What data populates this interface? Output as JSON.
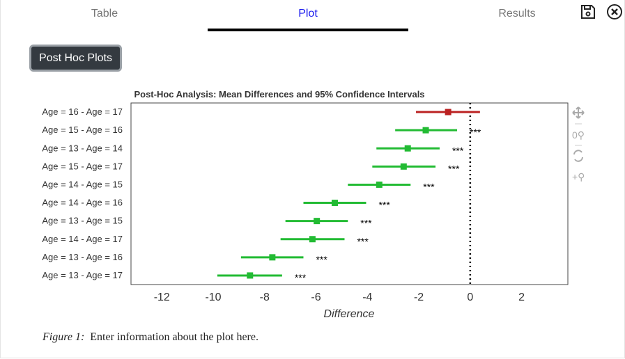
{
  "tabs": [
    {
      "label": "Table"
    },
    {
      "label": "Plot",
      "active": true
    },
    {
      "label": "Results"
    }
  ],
  "icons": {
    "save": "save-icon",
    "close": "close-circle-icon"
  },
  "button": {
    "label": "Post Hoc Plots"
  },
  "toolbar": [
    "move-icon",
    "zoom-reset-icon",
    "reset-icon",
    "zoom-in-icon"
  ],
  "caption": {
    "label": "Figure 1:",
    "text": "Enter information about the plot here."
  },
  "chart_data": {
    "type": "forest",
    "title": "Post-Hoc Analysis: Mean Differences and 95% Confidence Intervals",
    "xlabel": "Difference",
    "xlim": [
      -13.2,
      3.8
    ],
    "xticks": [
      -12,
      -10,
      -8,
      -6,
      -4,
      -2,
      0,
      2
    ],
    "reference_line": 0,
    "colors": {
      "significant": "#22bb33",
      "nonsignificant": "#bb2222"
    },
    "rows": [
      {
        "label": "Age = 16 - Age = 17",
        "mean": -0.86,
        "lo": -2.11,
        "hi": 0.38,
        "sig": ""
      },
      {
        "label": "Age = 15 - Age = 16",
        "mean": -1.73,
        "lo": -2.92,
        "hi": -0.51,
        "sig": "***"
      },
      {
        "label": "Age = 13 - Age = 14",
        "mean": -2.43,
        "lo": -3.65,
        "hi": -1.19,
        "sig": "***"
      },
      {
        "label": "Age = 15 - Age = 17",
        "mean": -2.59,
        "lo": -3.81,
        "hi": -1.35,
        "sig": "***"
      },
      {
        "label": "Age = 14 - Age = 15",
        "mean": -3.54,
        "lo": -4.76,
        "hi": -2.32,
        "sig": "***"
      },
      {
        "label": "Age = 14 - Age = 16",
        "mean": -5.27,
        "lo": -6.49,
        "hi": -4.05,
        "sig": "***"
      },
      {
        "label": "Age = 13 - Age = 15",
        "mean": -5.97,
        "lo": -7.19,
        "hi": -4.76,
        "sig": "***"
      },
      {
        "label": "Age = 14 - Age = 17",
        "mean": -6.14,
        "lo": -7.38,
        "hi": -4.89,
        "sig": "***"
      },
      {
        "label": "Age = 13 - Age = 16",
        "mean": -7.7,
        "lo": -8.92,
        "hi": -6.49,
        "sig": "***"
      },
      {
        "label": "Age = 13 - Age = 17",
        "mean": -8.57,
        "lo": -9.84,
        "hi": -7.32,
        "sig": "***"
      }
    ]
  }
}
